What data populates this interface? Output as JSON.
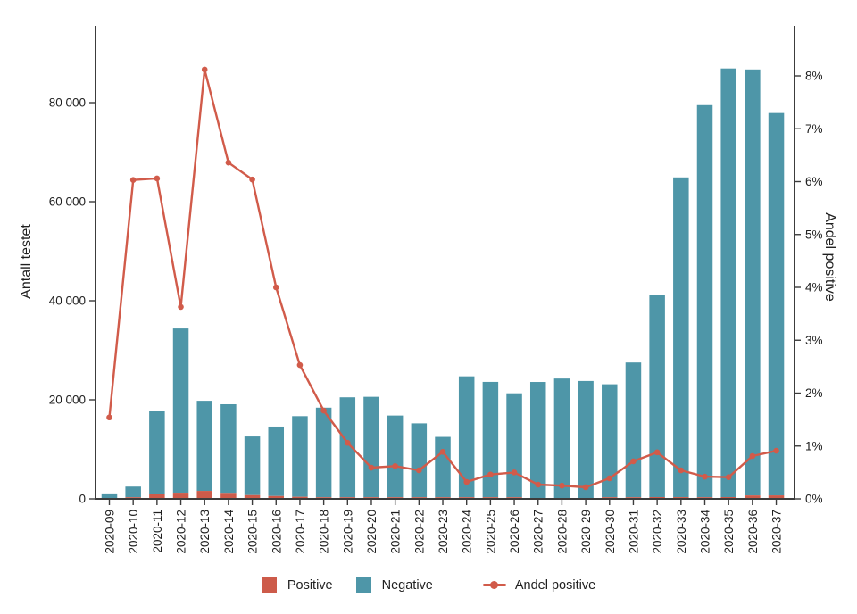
{
  "chart_data": {
    "type": "bar",
    "subtype": "stacked-bar-with-line-combo",
    "title": "",
    "grid": false,
    "legend_position": "bottom",
    "categories": [
      "2020-09",
      "2020-10",
      "2020-11",
      "2020-12",
      "2020-13",
      "2020-14",
      "2020-15",
      "2020-16",
      "2020-17",
      "2020-18",
      "2020-19",
      "2020-20",
      "2020-21",
      "2020-22",
      "2020-23",
      "2020-24",
      "2020-25",
      "2020-26",
      "2020-27",
      "2020-28",
      "2020-29",
      "2020-30",
      "2020-31",
      "2020-32",
      "2020-33",
      "2020-34",
      "2020-35",
      "2020-36",
      "2020-37"
    ],
    "series": [
      {
        "name": "Positive",
        "type": "bar",
        "axis": "left",
        "color": "#cd5b4a",
        "values": [
          20,
          140,
          1070,
          1250,
          1610,
          1210,
          760,
          580,
          420,
          310,
          220,
          120,
          100,
          80,
          110,
          80,
          110,
          110,
          60,
          60,
          50,
          90,
          190,
          360,
          350,
          330,
          360,
          700,
          710
        ]
      },
      {
        "name": "Negative",
        "type": "bar",
        "axis": "left",
        "color": "#4e96a8",
        "values": [
          1080,
          2160,
          16630,
          33150,
          18190,
          17890,
          11840,
          14020,
          16280,
          18090,
          20180,
          20280,
          16500,
          14920,
          12190,
          24420,
          23290,
          20990,
          23540,
          24240,
          23750,
          22810,
          27210,
          40740,
          64550,
          79170,
          86540,
          86000,
          77190
        ]
      },
      {
        "name": "Andel positive",
        "type": "line",
        "axis": "right",
        "color": "#d15b4a",
        "values_percent": [
          1.54,
          6.03,
          6.06,
          3.63,
          8.12,
          6.36,
          6.04,
          4.0,
          2.53,
          1.67,
          1.06,
          0.59,
          0.62,
          0.54,
          0.89,
          0.32,
          0.46,
          0.5,
          0.27,
          0.25,
          0.22,
          0.39,
          0.71,
          0.88,
          0.54,
          0.42,
          0.41,
          0.81,
          0.91
        ]
      }
    ],
    "left_axis": {
      "label": "Antall testet",
      "tick_values": [
        0,
        20000,
        40000,
        60000,
        80000
      ],
      "tick_labels": [
        "0",
        "20 000",
        "40 000",
        "60 000",
        "80 000"
      ],
      "range": [
        0,
        95500
      ]
    },
    "right_axis": {
      "label": "Andel positive",
      "tick_values": [
        0,
        1,
        2,
        3,
        4,
        5,
        6,
        7,
        8
      ],
      "tick_labels": [
        "0%",
        "1%",
        "2%",
        "3%",
        "4%",
        "5%",
        "6%",
        "7%",
        "8%"
      ],
      "range": [
        0,
        8.95
      ]
    },
    "colors": {
      "positive": "#cd5b4a",
      "negative": "#4e96a8",
      "line": "#d15b4a",
      "axis": "#3c3c3c",
      "text": "#1f1f1f"
    }
  },
  "legend": {
    "items": [
      {
        "label": "Positive",
        "marker": "square",
        "color": "#cd5b4a"
      },
      {
        "label": "Negative",
        "marker": "square",
        "color": "#4e96a8"
      },
      {
        "label": "Andel positive",
        "marker": "line-dot",
        "color": "#d15b4a"
      }
    ]
  }
}
